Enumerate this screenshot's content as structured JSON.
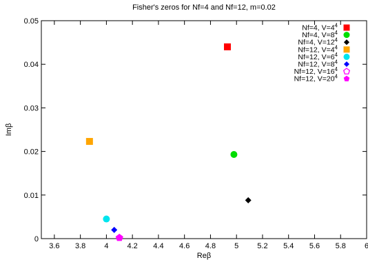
{
  "chart_data": {
    "type": "scatter",
    "title": "Fisher's zeros for Nf=4 and Nf=12, m=0.02",
    "xlabel": "Reβ",
    "ylabel": "Imβ",
    "xlim": [
      3.5,
      6.0
    ],
    "ylim": [
      0,
      0.05
    ],
    "xticks": [
      "3.6",
      "3.8",
      "4",
      "4.2",
      "4.4",
      "4.6",
      "4.8",
      "5",
      "5.2",
      "5.4",
      "5.6",
      "5.8",
      "6"
    ],
    "yticks": [
      "0",
      "0.01",
      "0.02",
      "0.03",
      "0.04",
      "0.05"
    ],
    "grid": false,
    "legend_position": "top-right",
    "series": [
      {
        "name": "Nf=4, V=4",
        "exp": "4",
        "color": "#ff0000",
        "marker": "square",
        "x": 4.93,
        "y": 0.044
      },
      {
        "name": "Nf=4, V=8",
        "exp": "4",
        "color": "#00dd00",
        "marker": "circle",
        "x": 4.98,
        "y": 0.0193
      },
      {
        "name": "Nf=4, V=12",
        "exp": "4",
        "color": "#000000",
        "marker": "diamond",
        "x": 5.09,
        "y": 0.0088
      },
      {
        "name": "Nf=12, V=4",
        "exp": "4",
        "color": "#ffa500",
        "marker": "square",
        "x": 3.87,
        "y": 0.0223
      },
      {
        "name": "Nf=12, V=6",
        "exp": "4",
        "color": "#00e5ee",
        "marker": "circle",
        "x": 4.0,
        "y": 0.0045
      },
      {
        "name": "Nf=12, V=8",
        "exp": "4",
        "color": "#0000ff",
        "marker": "diamond",
        "x": 4.06,
        "y": 0.002
      },
      {
        "name": "Nf=12, V=16",
        "exp": "4",
        "color": "#ff00ff",
        "marker": "pentagon-open",
        "x": 4.1,
        "y": 0.0002
      },
      {
        "name": "Nf=12, V=20",
        "exp": "4",
        "color": "#ff00ff",
        "marker": "pentagon",
        "x": 4.1,
        "y": 0.0002
      }
    ]
  }
}
